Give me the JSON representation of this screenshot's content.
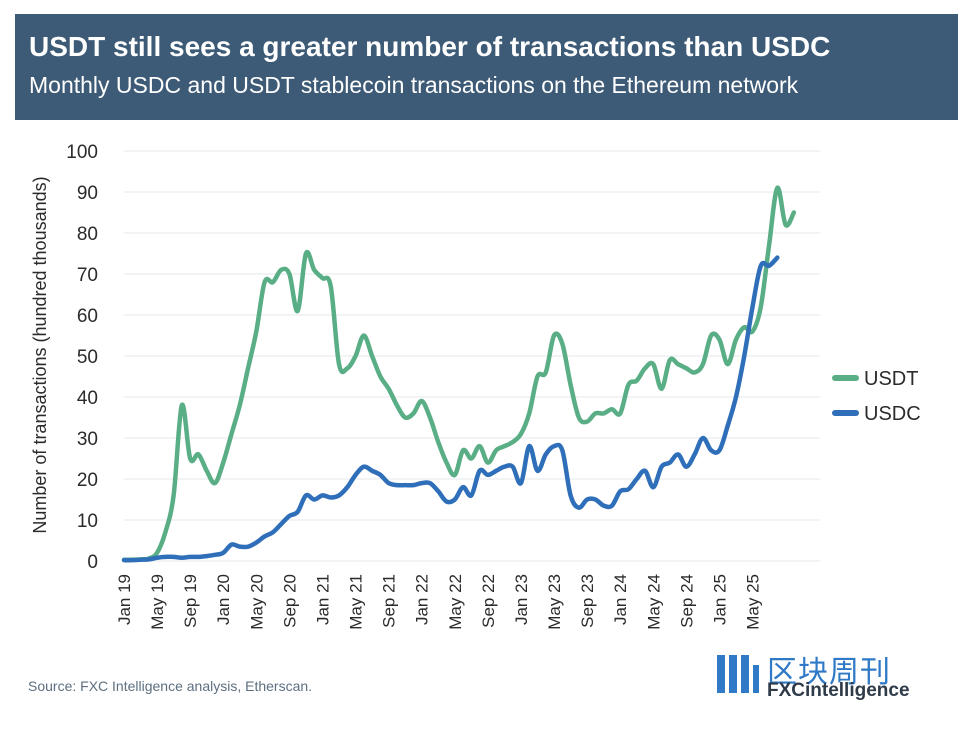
{
  "header": {
    "title": "USDT still sees a greater number of transactions than USDC",
    "subtitle": "Monthly USDC and USDT stablecoin transactions on the Ethereum network"
  },
  "source": "Source: FXC Intelligence analysis, Etherscan.",
  "watermark": {
    "chinese": "区块周刊",
    "english": "FXCintelligence"
  },
  "colors": {
    "header_bg": "#3d5a76",
    "usdt": "#5aae86",
    "usdc": "#2f6fba",
    "grid": "#e3e7ea"
  },
  "chart_data": {
    "type": "line",
    "ylabel": "Number of transactions (hundred thousands)",
    "xlabel": "",
    "ylim": [
      0,
      100
    ],
    "yticks": [
      "0",
      "10",
      "20",
      "30",
      "40",
      "50",
      "60",
      "70",
      "80",
      "90",
      "100"
    ],
    "xticks": [
      "Jan 19",
      "May 19",
      "Sep 19",
      "Jan 20",
      "May 20",
      "Sep 20",
      "Jan 21",
      "May 21",
      "Sep 21",
      "Jan 22",
      "May 22",
      "Sep 22",
      "Jan 23",
      "May 23",
      "Sep 23",
      "Jan 24",
      "May 24",
      "Sep 24",
      "Jan 25",
      "May 25"
    ],
    "legend_position": "right",
    "x_unit": "months since Jan 19",
    "series": [
      {
        "name": "USDT",
        "color": "#5aae86",
        "points": [
          [
            0,
            0.3
          ],
          [
            1,
            0.3
          ],
          [
            2,
            0.4
          ],
          [
            3,
            0.6
          ],
          [
            4,
            2
          ],
          [
            5,
            7
          ],
          [
            6,
            16
          ],
          [
            7,
            38
          ],
          [
            8,
            25
          ],
          [
            9,
            26
          ],
          [
            10,
            22
          ],
          [
            11,
            19
          ],
          [
            12,
            24
          ],
          [
            13,
            31
          ],
          [
            14,
            38
          ],
          [
            15,
            47
          ],
          [
            16,
            56
          ],
          [
            17,
            68
          ],
          [
            18,
            68
          ],
          [
            19,
            71
          ],
          [
            20,
            70
          ],
          [
            21,
            61
          ],
          [
            22,
            75
          ],
          [
            23,
            71
          ],
          [
            24,
            69
          ],
          [
            25,
            67
          ],
          [
            26,
            48
          ],
          [
            27,
            47
          ],
          [
            28,
            50
          ],
          [
            29,
            55
          ],
          [
            30,
            50
          ],
          [
            31,
            45
          ],
          [
            32,
            42
          ],
          [
            33,
            38
          ],
          [
            34,
            35
          ],
          [
            35,
            36
          ],
          [
            36,
            39
          ],
          [
            37,
            35
          ],
          [
            38,
            29
          ],
          [
            39,
            24
          ],
          [
            40,
            21
          ],
          [
            41,
            27
          ],
          [
            42,
            25
          ],
          [
            43,
            28
          ],
          [
            44,
            24
          ],
          [
            45,
            27
          ],
          [
            46,
            28
          ],
          [
            47,
            29
          ],
          [
            48,
            31
          ],
          [
            49,
            36
          ],
          [
            50,
            45
          ],
          [
            51,
            46
          ],
          [
            52,
            55
          ],
          [
            53,
            53
          ],
          [
            54,
            43
          ],
          [
            55,
            35
          ],
          [
            56,
            34
          ],
          [
            57,
            36
          ],
          [
            58,
            36
          ],
          [
            59,
            37
          ],
          [
            60,
            36
          ],
          [
            61,
            43
          ],
          [
            62,
            44
          ],
          [
            63,
            47
          ],
          [
            64,
            48
          ],
          [
            65,
            42
          ],
          [
            66,
            49
          ],
          [
            67,
            48
          ],
          [
            68,
            47
          ],
          [
            69,
            46
          ],
          [
            70,
            48
          ],
          [
            71,
            55
          ],
          [
            72,
            54
          ],
          [
            73,
            48
          ],
          [
            74,
            54
          ],
          [
            75,
            57
          ],
          [
            76,
            56
          ],
          [
            77,
            62
          ],
          [
            78,
            77
          ],
          [
            79,
            91
          ],
          [
            80,
            82
          ],
          [
            81,
            85
          ]
        ]
      },
      {
        "name": "USDC",
        "color": "#2f6fba",
        "points": [
          [
            0,
            0.2
          ],
          [
            1,
            0.2
          ],
          [
            2,
            0.3
          ],
          [
            3,
            0.4
          ],
          [
            4,
            0.8
          ],
          [
            5,
            1
          ],
          [
            6,
            1
          ],
          [
            7,
            0.8
          ],
          [
            8,
            1
          ],
          [
            9,
            1
          ],
          [
            10,
            1.2
          ],
          [
            11,
            1.5
          ],
          [
            12,
            2
          ],
          [
            13,
            4
          ],
          [
            14,
            3.5
          ],
          [
            15,
            3.5
          ],
          [
            16,
            4.5
          ],
          [
            17,
            6
          ],
          [
            18,
            7
          ],
          [
            19,
            9
          ],
          [
            20,
            11
          ],
          [
            21,
            12
          ],
          [
            22,
            16
          ],
          [
            23,
            15
          ],
          [
            24,
            16
          ],
          [
            25,
            15.5
          ],
          [
            26,
            16
          ],
          [
            27,
            18
          ],
          [
            28,
            21
          ],
          [
            29,
            23
          ],
          [
            30,
            22
          ],
          [
            31,
            21
          ],
          [
            32,
            19
          ],
          [
            33,
            18.5
          ],
          [
            34,
            18.5
          ],
          [
            35,
            18.5
          ],
          [
            36,
            19
          ],
          [
            37,
            19
          ],
          [
            38,
            17
          ],
          [
            39,
            14.5
          ],
          [
            40,
            15
          ],
          [
            41,
            18
          ],
          [
            42,
            16
          ],
          [
            43,
            22
          ],
          [
            44,
            21
          ],
          [
            45,
            22
          ],
          [
            46,
            23
          ],
          [
            47,
            23
          ],
          [
            48,
            19
          ],
          [
            49,
            28
          ],
          [
            50,
            22
          ],
          [
            51,
            26
          ],
          [
            52,
            28
          ],
          [
            53,
            27
          ],
          [
            54,
            16
          ],
          [
            55,
            13
          ],
          [
            56,
            15
          ],
          [
            57,
            15
          ],
          [
            58,
            13.5
          ],
          [
            59,
            13.5
          ],
          [
            60,
            17
          ],
          [
            61,
            17.5
          ],
          [
            62,
            20
          ],
          [
            63,
            22
          ],
          [
            64,
            18
          ],
          [
            65,
            23
          ],
          [
            66,
            24
          ],
          [
            67,
            26
          ],
          [
            68,
            23
          ],
          [
            69,
            26
          ],
          [
            70,
            30
          ],
          [
            71,
            27
          ],
          [
            72,
            27
          ],
          [
            73,
            33
          ],
          [
            74,
            40
          ],
          [
            75,
            50
          ],
          [
            76,
            62
          ],
          [
            77,
            72
          ],
          [
            78,
            72
          ],
          [
            79,
            74
          ]
        ]
      }
    ]
  }
}
